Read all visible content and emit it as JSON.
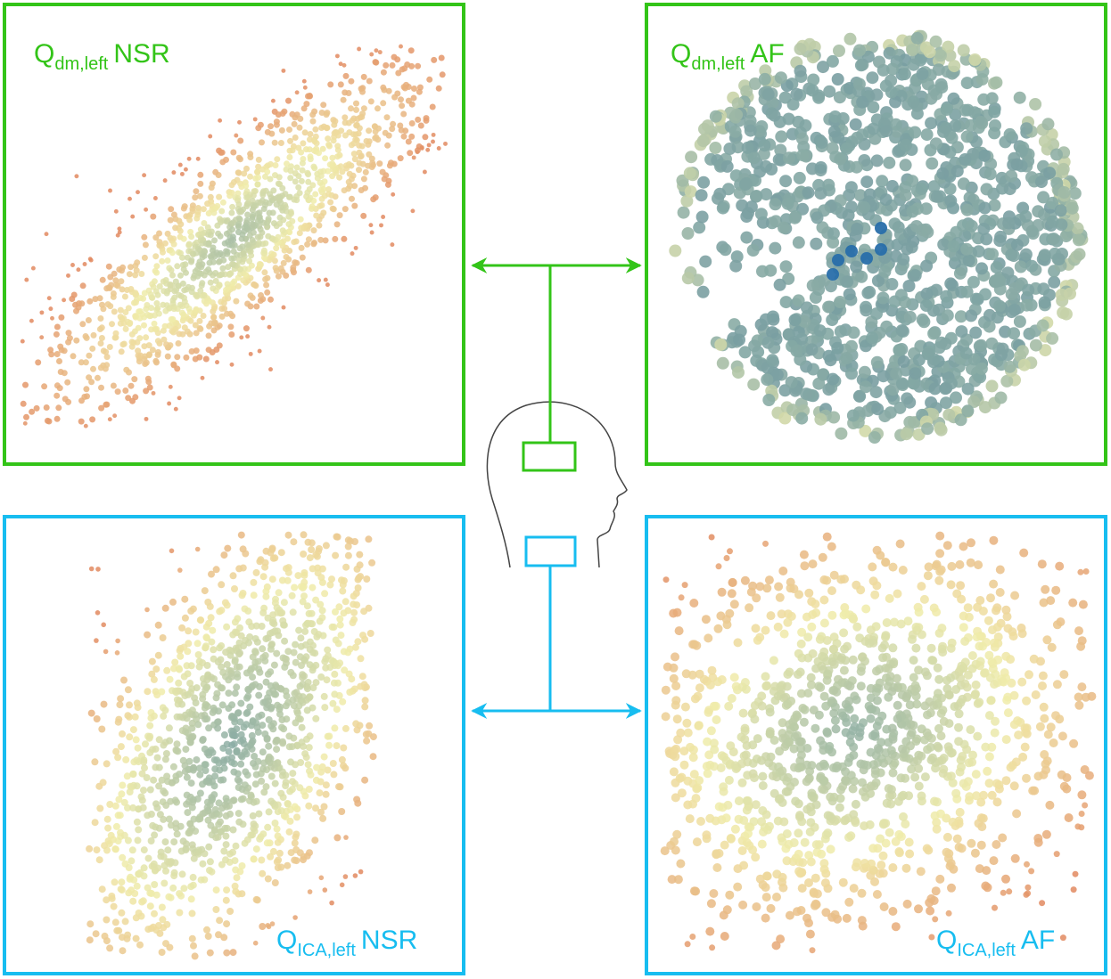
{
  "panels": [
    {
      "label": {
        "symbol": "Q",
        "subscript": "dm,left",
        "condition": "NSR"
      }
    },
    {
      "label": {
        "symbol": "Q",
        "subscript": "dm,left",
        "condition": "AF"
      }
    },
    {
      "label": {
        "symbol": "Q",
        "subscript": "ICA,left",
        "condition": "NSR"
      }
    },
    {
      "label": {
        "symbol": "Q",
        "subscript": "ICA,left",
        "condition": "AF"
      }
    }
  ]
}
